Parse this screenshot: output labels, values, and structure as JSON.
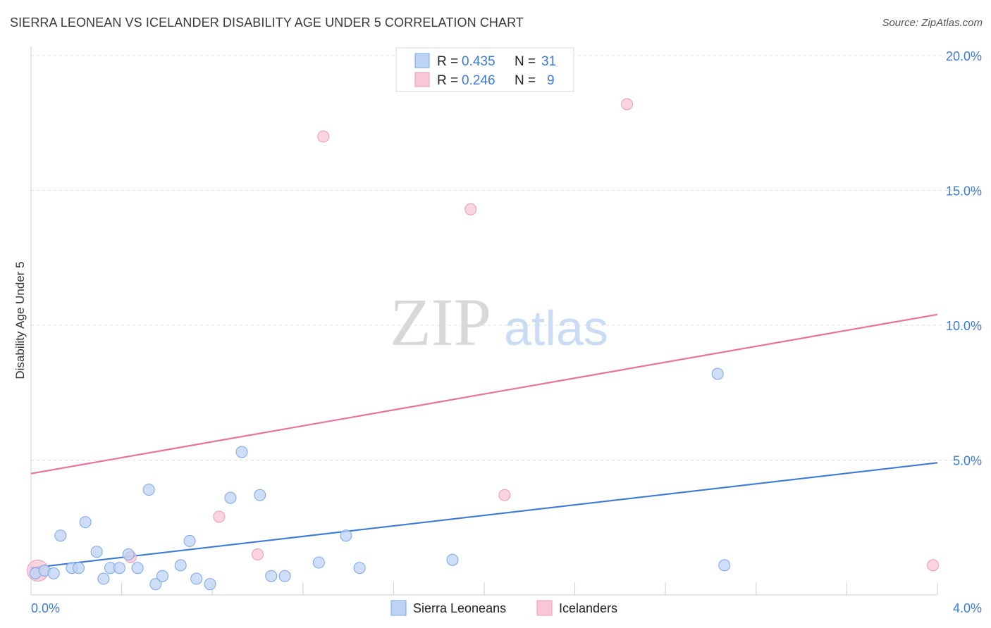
{
  "title": "SIERRA LEONEAN VS ICELANDER DISABILITY AGE UNDER 5 CORRELATION CHART",
  "source": "Source: ZipAtlas.com",
  "watermark": {
    "zip": "ZIP",
    "atlas": "atlas"
  },
  "colors": {
    "blue": "#3d7ad6",
    "blue_fill": "#bcd3f3",
    "pink": "#e8729a",
    "pink_fill": "#f8c6d6"
  },
  "legend": {
    "rows": [
      {
        "r_label": "R =",
        "r_value": "0.435",
        "n_label": "N =",
        "n_value": "31"
      },
      {
        "r_label": "R =",
        "r_value": "0.246",
        "n_label": "N =",
        "n_value": "9"
      }
    ]
  },
  "chart_data": {
    "type": "scatter",
    "title": "SIERRA LEONEAN VS ICELANDER DISABILITY AGE UNDER 5 CORRELATION CHART",
    "xlabel": "",
    "ylabel": "Disability Age Under 5",
    "xlim": [
      0,
      4
    ],
    "ylim": [
      0,
      20
    ],
    "x_tick_labels": [
      "0.0%",
      "4.0%"
    ],
    "y_ticks": [
      5,
      10,
      15,
      20
    ],
    "y_tick_labels": [
      "5.0%",
      "10.0%",
      "15.0%",
      "20.0%"
    ],
    "grid": true,
    "legend_position": "top-center",
    "series": [
      {
        "name": "Sierra Leoneans",
        "color": "#3d7ad6",
        "r": 0.435,
        "n": 31,
        "trend": {
          "x": [
            0,
            4
          ],
          "y": [
            1.0,
            4.9
          ]
        },
        "points": [
          {
            "x": 0.02,
            "y": 0.8
          },
          {
            "x": 0.06,
            "y": 0.9
          },
          {
            "x": 0.1,
            "y": 0.8
          },
          {
            "x": 0.13,
            "y": 2.2
          },
          {
            "x": 0.18,
            "y": 1.0
          },
          {
            "x": 0.21,
            "y": 1.0
          },
          {
            "x": 0.24,
            "y": 2.7
          },
          {
            "x": 0.29,
            "y": 1.6
          },
          {
            "x": 0.32,
            "y": 0.6
          },
          {
            "x": 0.35,
            "y": 1.0
          },
          {
            "x": 0.39,
            "y": 1.0
          },
          {
            "x": 0.43,
            "y": 1.5
          },
          {
            "x": 0.47,
            "y": 1.0
          },
          {
            "x": 0.52,
            "y": 3.9
          },
          {
            "x": 0.55,
            "y": 0.4
          },
          {
            "x": 0.58,
            "y": 0.7
          },
          {
            "x": 0.66,
            "y": 1.1
          },
          {
            "x": 0.7,
            "y": 2.0
          },
          {
            "x": 0.73,
            "y": 0.6
          },
          {
            "x": 0.79,
            "y": 0.4
          },
          {
            "x": 0.88,
            "y": 3.6
          },
          {
            "x": 0.93,
            "y": 5.3
          },
          {
            "x": 1.01,
            "y": 3.7
          },
          {
            "x": 1.06,
            "y": 0.7
          },
          {
            "x": 1.12,
            "y": 0.7
          },
          {
            "x": 1.27,
            "y": 1.2
          },
          {
            "x": 1.39,
            "y": 2.2
          },
          {
            "x": 1.45,
            "y": 1.0
          },
          {
            "x": 1.86,
            "y": 1.3
          },
          {
            "x": 3.03,
            "y": 8.2
          },
          {
            "x": 3.06,
            "y": 1.1
          }
        ]
      },
      {
        "name": "Icelanders",
        "color": "#e8729a",
        "r": 0.246,
        "n": 9,
        "trend": {
          "x": [
            0,
            4
          ],
          "y": [
            4.5,
            10.4
          ]
        },
        "points": [
          {
            "x": 0.03,
            "y": 0.9
          },
          {
            "x": 0.44,
            "y": 1.4
          },
          {
            "x": 0.83,
            "y": 2.9
          },
          {
            "x": 1.0,
            "y": 1.5
          },
          {
            "x": 1.29,
            "y": 17.0
          },
          {
            "x": 1.94,
            "y": 14.3
          },
          {
            "x": 2.09,
            "y": 3.7
          },
          {
            "x": 2.63,
            "y": 18.2
          },
          {
            "x": 3.98,
            "y": 1.1
          }
        ]
      }
    ]
  }
}
